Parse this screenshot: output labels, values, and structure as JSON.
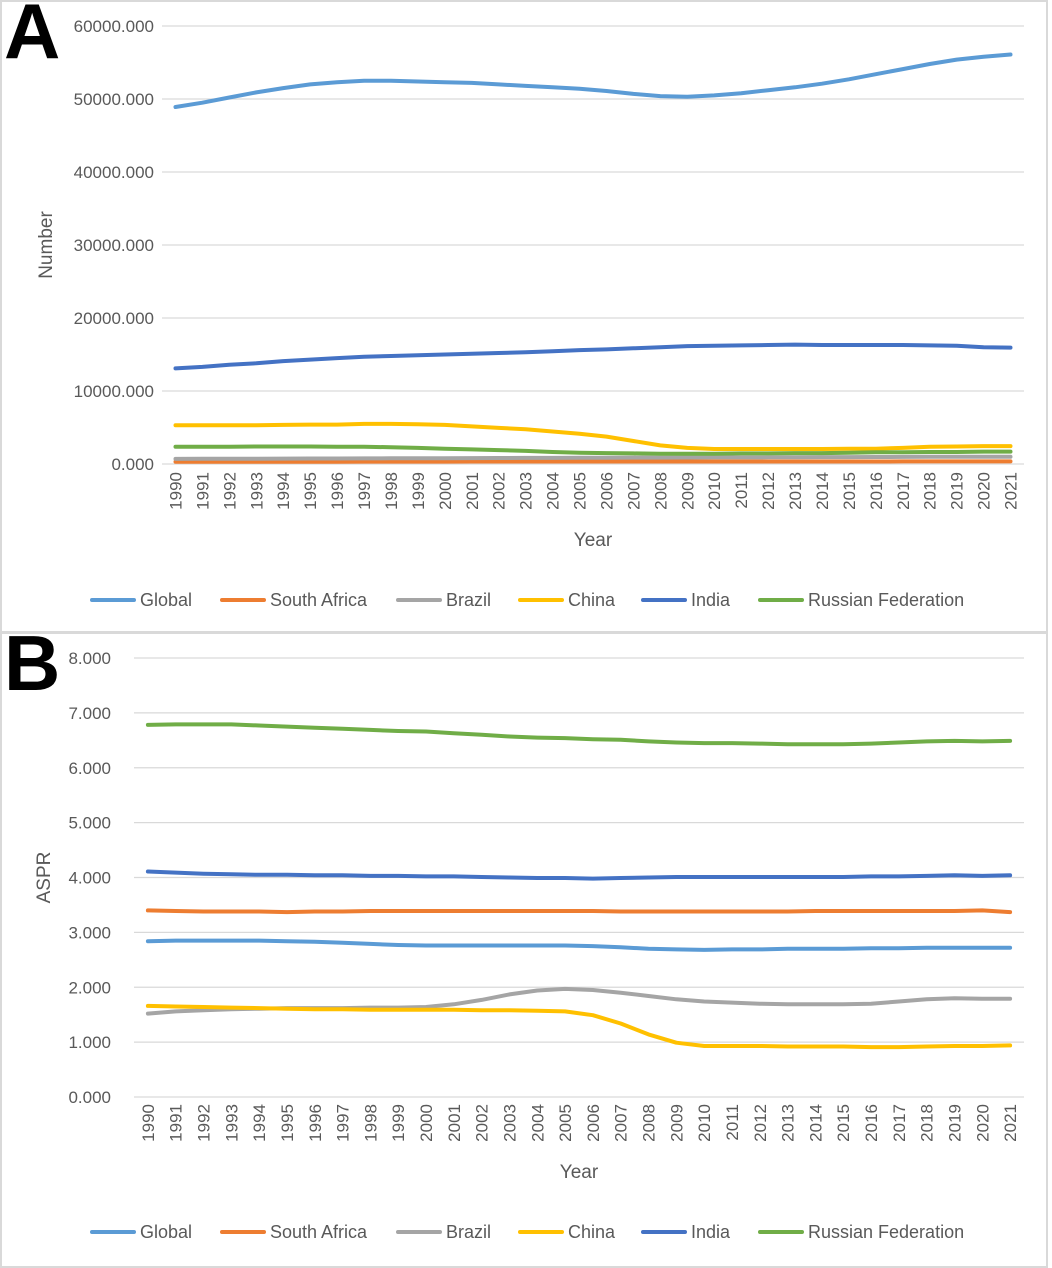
{
  "colors": {
    "Global": "#5b9bd5",
    "South Africa": "#ed7d31",
    "Brazil": "#a5a5a5",
    "China": "#ffc000",
    "India": "#4472c4",
    "Russian Federation": "#70ad47"
  },
  "chart_data": [
    {
      "panel": "A",
      "type": "line",
      "title": "",
      "xlabel": "Year",
      "ylabel": "Number",
      "ylim": [
        0,
        60000
      ],
      "yticks": [
        "0.000",
        "10000.000",
        "20000.000",
        "30000.000",
        "40000.000",
        "50000.000",
        "60000.000"
      ],
      "categories": [
        "1990",
        "1991",
        "1992",
        "1993",
        "1994",
        "1995",
        "1996",
        "1997",
        "1998",
        "1999",
        "2000",
        "2001",
        "2002",
        "2003",
        "2004",
        "2005",
        "2006",
        "2007",
        "2008",
        "2009",
        "2010",
        "2011",
        "2012",
        "2013",
        "2014",
        "2015",
        "2016",
        "2017",
        "2018",
        "2019",
        "2020",
        "2021"
      ],
      "legend": [
        "Global",
        "South Africa",
        "Brazil",
        "China",
        "India",
        "Russian Federation"
      ],
      "series": [
        {
          "name": "Global",
          "values": [
            48900,
            49500,
            50200,
            50900,
            51500,
            52000,
            52300,
            52500,
            52500,
            52400,
            52300,
            52200,
            52000,
            51800,
            51600,
            51400,
            51100,
            50700,
            50400,
            50300,
            50500,
            50800,
            51200,
            51600,
            52100,
            52700,
            53400,
            54100,
            54800,
            55400,
            55800,
            56100
          ]
        },
        {
          "name": "South Africa",
          "values": [
            300,
            300,
            310,
            310,
            320,
            320,
            320,
            330,
            330,
            330,
            330,
            340,
            340,
            340,
            340,
            340,
            340,
            340,
            340,
            340,
            340,
            340,
            340,
            340,
            340,
            340,
            340,
            350,
            350,
            350,
            350,
            350
          ]
        },
        {
          "name": "Brazil",
          "values": [
            700,
            710,
            720,
            730,
            740,
            750,
            760,
            770,
            780,
            790,
            800,
            810,
            820,
            830,
            840,
            850,
            860,
            870,
            880,
            890,
            900,
            910,
            920,
            930,
            940,
            950,
            960,
            970,
            980,
            990,
            1000,
            1000
          ]
        },
        {
          "name": "China",
          "values": [
            5300,
            5300,
            5300,
            5300,
            5350,
            5400,
            5400,
            5500,
            5500,
            5450,
            5350,
            5150,
            4950,
            4750,
            4450,
            4150,
            3750,
            3150,
            2550,
            2200,
            2050,
            2050,
            2050,
            2050,
            2050,
            2100,
            2100,
            2200,
            2350,
            2400,
            2450,
            2450
          ]
        },
        {
          "name": "India",
          "values": [
            13100,
            13300,
            13600,
            13800,
            14100,
            14300,
            14500,
            14700,
            14800,
            14900,
            15000,
            15100,
            15200,
            15300,
            15450,
            15600,
            15700,
            15850,
            16000,
            16150,
            16200,
            16250,
            16300,
            16350,
            16300,
            16300,
            16300,
            16300,
            16250,
            16200,
            16000,
            15950
          ]
        },
        {
          "name": "Russian Federation",
          "values": [
            2350,
            2350,
            2350,
            2400,
            2400,
            2400,
            2350,
            2350,
            2300,
            2200,
            2100,
            2000,
            1900,
            1800,
            1650,
            1550,
            1500,
            1450,
            1400,
            1400,
            1400,
            1450,
            1450,
            1500,
            1500,
            1550,
            1600,
            1600,
            1650,
            1650,
            1700,
            1700
          ]
        }
      ]
    },
    {
      "panel": "B",
      "type": "line",
      "title": "",
      "xlabel": "Year",
      "ylabel": "ASPR",
      "ylim": [
        0,
        8
      ],
      "yticks": [
        "0.000",
        "1.000",
        "2.000",
        "3.000",
        "4.000",
        "5.000",
        "6.000",
        "7.000",
        "8.000"
      ],
      "categories": [
        "1990",
        "1991",
        "1992",
        "1993",
        "1994",
        "1995",
        "1996",
        "1997",
        "1998",
        "1999",
        "2000",
        "2001",
        "2002",
        "2003",
        "2004",
        "2005",
        "2006",
        "2007",
        "2008",
        "2009",
        "2010",
        "2011",
        "2012",
        "2013",
        "2014",
        "2015",
        "2016",
        "2017",
        "2018",
        "2019",
        "2020",
        "2021"
      ],
      "legend": [
        "Global",
        "South Africa",
        "Brazil",
        "China",
        "India",
        "Russian Federation"
      ],
      "series": [
        {
          "name": "Global",
          "values": [
            2.84,
            2.85,
            2.85,
            2.85,
            2.85,
            2.84,
            2.83,
            2.81,
            2.79,
            2.77,
            2.76,
            2.76,
            2.76,
            2.76,
            2.76,
            2.76,
            2.75,
            2.73,
            2.7,
            2.69,
            2.68,
            2.69,
            2.69,
            2.7,
            2.7,
            2.7,
            2.71,
            2.71,
            2.72,
            2.72,
            2.72,
            2.72
          ]
        },
        {
          "name": "South Africa",
          "values": [
            3.4,
            3.39,
            3.38,
            3.38,
            3.38,
            3.37,
            3.38,
            3.38,
            3.39,
            3.39,
            3.39,
            3.39,
            3.39,
            3.39,
            3.39,
            3.39,
            3.39,
            3.38,
            3.38,
            3.38,
            3.38,
            3.38,
            3.38,
            3.38,
            3.39,
            3.39,
            3.39,
            3.39,
            3.39,
            3.39,
            3.4,
            3.37
          ]
        },
        {
          "name": "Brazil",
          "values": [
            1.52,
            1.56,
            1.58,
            1.6,
            1.61,
            1.62,
            1.62,
            1.62,
            1.63,
            1.63,
            1.64,
            1.69,
            1.77,
            1.87,
            1.94,
            1.97,
            1.95,
            1.9,
            1.84,
            1.78,
            1.74,
            1.72,
            1.7,
            1.69,
            1.69,
            1.69,
            1.7,
            1.74,
            1.78,
            1.8,
            1.79,
            1.79
          ]
        },
        {
          "name": "China",
          "values": [
            1.66,
            1.65,
            1.64,
            1.63,
            1.62,
            1.61,
            1.6,
            1.6,
            1.59,
            1.59,
            1.59,
            1.59,
            1.58,
            1.58,
            1.57,
            1.56,
            1.49,
            1.34,
            1.14,
            0.99,
            0.93,
            0.93,
            0.93,
            0.92,
            0.92,
            0.92,
            0.91,
            0.91,
            0.92,
            0.93,
            0.93,
            0.94
          ]
        },
        {
          "name": "India",
          "values": [
            4.11,
            4.09,
            4.07,
            4.06,
            4.05,
            4.05,
            4.04,
            4.04,
            4.03,
            4.03,
            4.02,
            4.02,
            4.01,
            4.0,
            3.99,
            3.99,
            3.98,
            3.99,
            4.0,
            4.01,
            4.01,
            4.01,
            4.01,
            4.01,
            4.01,
            4.01,
            4.02,
            4.02,
            4.03,
            4.04,
            4.03,
            4.04
          ]
        },
        {
          "name": "Russian Federation",
          "values": [
            6.78,
            6.79,
            6.79,
            6.79,
            6.77,
            6.75,
            6.73,
            6.71,
            6.69,
            6.67,
            6.66,
            6.63,
            6.6,
            6.57,
            6.55,
            6.54,
            6.52,
            6.51,
            6.48,
            6.46,
            6.45,
            6.45,
            6.44,
            6.43,
            6.43,
            6.43,
            6.44,
            6.46,
            6.48,
            6.49,
            6.48,
            6.49
          ]
        }
      ]
    }
  ]
}
